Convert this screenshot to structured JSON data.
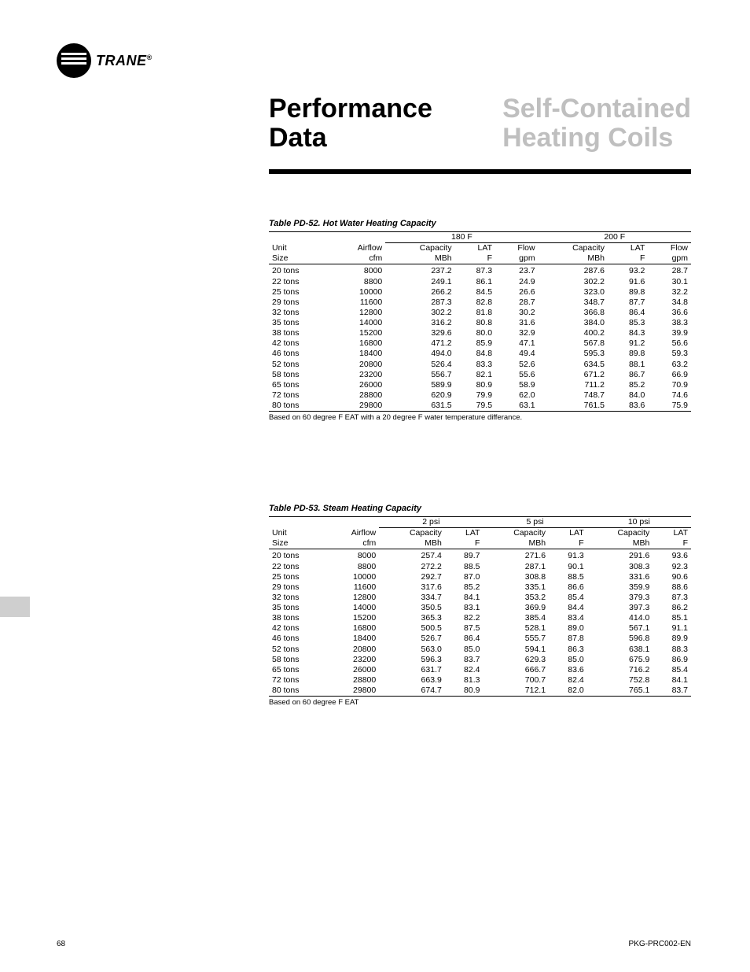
{
  "brand": "TRANE",
  "title_left_line1": "Performance",
  "title_left_line2": "Data",
  "title_right_line1": "Self-Contained",
  "title_right_line2": "Heating Coils",
  "page_number": "68",
  "doc_id": "PKG-PRC002-EN",
  "table1": {
    "caption": "Table PD-52. Hot Water Heating Capacity",
    "group_headers": [
      "180 F",
      "200 F"
    ],
    "col_headers_top": [
      "Unit",
      "Airflow",
      "Capacity",
      "LAT",
      "Flow",
      "Capacity",
      "LAT",
      "Flow"
    ],
    "col_headers_bot": [
      "Size",
      "cfm",
      "MBh",
      "F",
      "gpm",
      "MBh",
      "F",
      "gpm"
    ],
    "rows": [
      [
        "20 tons",
        "8000",
        "237.2",
        "87.3",
        "23.7",
        "287.6",
        "93.2",
        "28.7"
      ],
      [
        "22 tons",
        "8800",
        "249.1",
        "86.1",
        "24.9",
        "302.2",
        "91.6",
        "30.1"
      ],
      [
        "25 tons",
        "10000",
        "266.2",
        "84.5",
        "26.6",
        "323.0",
        "89.8",
        "32.2"
      ],
      [
        "29 tons",
        "11600",
        "287.3",
        "82.8",
        "28.7",
        "348.7",
        "87.7",
        "34.8"
      ],
      [
        "32 tons",
        "12800",
        "302.2",
        "81.8",
        "30.2",
        "366.8",
        "86.4",
        "36.6"
      ],
      [
        "35 tons",
        "14000",
        "316.2",
        "80.8",
        "31.6",
        "384.0",
        "85.3",
        "38.3"
      ],
      [
        "38 tons",
        "15200",
        "329.6",
        "80.0",
        "32.9",
        "400.2",
        "84.3",
        "39.9"
      ],
      [
        "42 tons",
        "16800",
        "471.2",
        "85.9",
        "47.1",
        "567.8",
        "91.2",
        "56.6"
      ],
      [
        "46 tons",
        "18400",
        "494.0",
        "84.8",
        "49.4",
        "595.3",
        "89.8",
        "59.3"
      ],
      [
        "52 tons",
        "20800",
        "526.4",
        "83.3",
        "52.6",
        "634.5",
        "88.1",
        "63.2"
      ],
      [
        "58 tons",
        "23200",
        "556.7",
        "82.1",
        "55.6",
        "671.2",
        "86.7",
        "66.9"
      ],
      [
        "65 tons",
        "26000",
        "589.9",
        "80.9",
        "58.9",
        "711.2",
        "85.2",
        "70.9"
      ],
      [
        "72 tons",
        "28800",
        "620.9",
        "79.9",
        "62.0",
        "748.7",
        "84.0",
        "74.6"
      ],
      [
        "80 tons",
        "29800",
        "631.5",
        "79.5",
        "63.1",
        "761.5",
        "83.6",
        "75.9"
      ]
    ],
    "footnote": "Based on 60 degree F EAT with a 20 degree F water temperature differance."
  },
  "table2": {
    "caption": "Table PD-53. Steam Heating Capacity",
    "group_headers": [
      "2 psi",
      "5 psi",
      "10 psi"
    ],
    "col_headers_top": [
      "Unit",
      "Airflow",
      "Capacity",
      "LAT",
      "Capacity",
      "LAT",
      "Capacity",
      "LAT"
    ],
    "col_headers_bot": [
      "Size",
      "cfm",
      "MBh",
      "F",
      "MBh",
      "F",
      "MBh",
      "F"
    ],
    "rows": [
      [
        "20 tons",
        "8000",
        "257.4",
        "89.7",
        "271.6",
        "91.3",
        "291.6",
        "93.6"
      ],
      [
        "22 tons",
        "8800",
        "272.2",
        "88.5",
        "287.1",
        "90.1",
        "308.3",
        "92.3"
      ],
      [
        "25 tons",
        "10000",
        "292.7",
        "87.0",
        "308.8",
        "88.5",
        "331.6",
        "90.6"
      ],
      [
        "29 tons",
        "11600",
        "317.6",
        "85.2",
        "335.1",
        "86.6",
        "359.9",
        "88.6"
      ],
      [
        "32 tons",
        "12800",
        "334.7",
        "84.1",
        "353.2",
        "85.4",
        "379.3",
        "87.3"
      ],
      [
        "35 tons",
        "14000",
        "350.5",
        "83.1",
        "369.9",
        "84.4",
        "397.3",
        "86.2"
      ],
      [
        "38 tons",
        "15200",
        "365.3",
        "82.2",
        "385.4",
        "83.4",
        "414.0",
        "85.1"
      ],
      [
        "42 tons",
        "16800",
        "500.5",
        "87.5",
        "528.1",
        "89.0",
        "567.1",
        "91.1"
      ],
      [
        "46 tons",
        "18400",
        "526.7",
        "86.4",
        "555.7",
        "87.8",
        "596.8",
        "89.9"
      ],
      [
        "52 tons",
        "20800",
        "563.0",
        "85.0",
        "594.1",
        "86.3",
        "638.1",
        "88.3"
      ],
      [
        "58 tons",
        "23200",
        "596.3",
        "83.7",
        "629.3",
        "85.0",
        "675.9",
        "86.9"
      ],
      [
        "65 tons",
        "26000",
        "631.7",
        "82.4",
        "666.7",
        "83.6",
        "716.2",
        "85.4"
      ],
      [
        "72 tons",
        "28800",
        "663.9",
        "81.3",
        "700.7",
        "82.4",
        "752.8",
        "84.1"
      ],
      [
        "80 tons",
        "29800",
        "674.7",
        "80.9",
        "712.1",
        "82.0",
        "765.1",
        "83.7"
      ]
    ],
    "footnote": "Based on 60 degree F EAT"
  }
}
